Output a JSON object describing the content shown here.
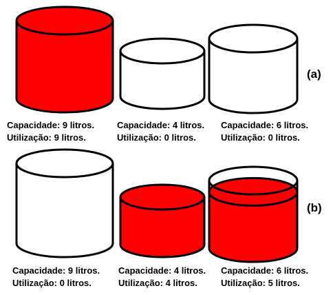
{
  "colors": {
    "fill": "#ff0000",
    "stroke": "#000000",
    "empty": "#ffffff"
  },
  "rows": [
    {
      "label": "(a)",
      "containers": [
        {
          "capacity": 9,
          "used": 9,
          "capacity_text": "Capacidade: 9 litros.",
          "used_text": "Utilização: 9 litros."
        },
        {
          "capacity": 4,
          "used": 0,
          "capacity_text": "Capacidade: 4 litros.",
          "used_text": "Utilização: 0 litros."
        },
        {
          "capacity": 6,
          "used": 0,
          "capacity_text": "Capacidade: 6 litros.",
          "used_text": "Utilização: 0 litros."
        }
      ]
    },
    {
      "label": "(b)",
      "containers": [
        {
          "capacity": 9,
          "used": 0,
          "capacity_text": "Capacidade: 9 litros.",
          "used_text": "Utilização: 0 litros."
        },
        {
          "capacity": 4,
          "used": 4,
          "capacity_text": "Capacidade: 4 litros.",
          "used_text": "Utilização: 4 litros."
        },
        {
          "capacity": 6,
          "used": 5,
          "capacity_text": "Capacidade: 6 litros.",
          "used_text": "Utilização: 5 litros."
        }
      ]
    }
  ]
}
